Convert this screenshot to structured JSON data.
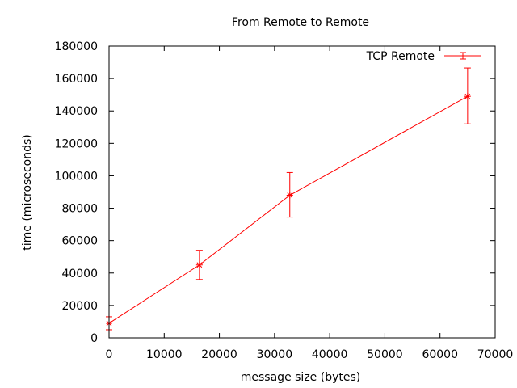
{
  "chart_data": {
    "type": "line",
    "title": "From Remote to Remote",
    "xlabel": "message size (bytes)",
    "ylabel": "time (microseconds)",
    "xlim": [
      0,
      70000
    ],
    "ylim": [
      0,
      180000
    ],
    "xticks": [
      0,
      10000,
      20000,
      30000,
      40000,
      50000,
      60000,
      70000
    ],
    "yticks": [
      0,
      20000,
      40000,
      60000,
      80000,
      100000,
      120000,
      140000,
      160000,
      180000
    ],
    "grid": false,
    "legend_position": "top-right",
    "series": [
      {
        "name": "TCP Remote",
        "color": "#ff0000",
        "points": [
          {
            "x": 0,
            "y": 9000,
            "ylow": 5000,
            "yhigh": 13000
          },
          {
            "x": 16384,
            "y": 45000,
            "ylow": 36000,
            "yhigh": 54000
          },
          {
            "x": 32768,
            "y": 88000,
            "ylow": 74500,
            "yhigh": 102000
          },
          {
            "x": 65000,
            "y": 149000,
            "ylow": 132000,
            "yhigh": 166500
          }
        ]
      }
    ]
  }
}
